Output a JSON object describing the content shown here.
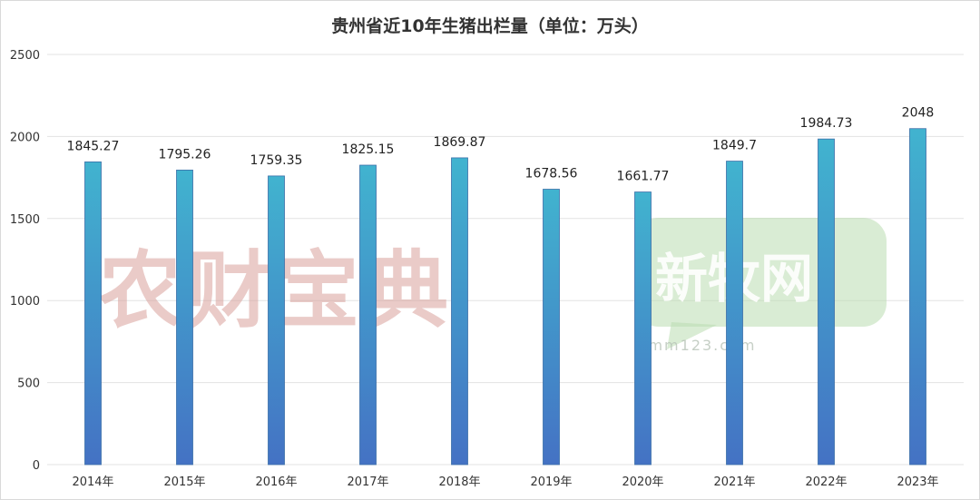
{
  "chart_data": {
    "type": "bar",
    "title": "贵州省近10年生猪出栏量（单位：万头）",
    "categories": [
      "2014年",
      "2015年",
      "2016年",
      "2017年",
      "2018年",
      "2019年",
      "2020年",
      "2021年",
      "2022年",
      "2023年"
    ],
    "values": [
      1845.27,
      1795.26,
      1759.35,
      1825.15,
      1869.87,
      1678.56,
      1661.77,
      1849.7,
      1984.73,
      2048
    ],
    "value_labels": [
      "1845.27",
      "1795.26",
      "1759.35",
      "1825.15",
      "1869.87",
      "1678.56",
      "1661.77",
      "1849.7",
      "1984.73",
      "2048"
    ],
    "yticks": [
      "0",
      "500",
      "1000",
      "1500",
      "2000",
      "2500"
    ],
    "ylim": [
      0,
      2500
    ],
    "grid": true,
    "bar_color_top": "#41b3cf",
    "bar_color_bottom": "#4472c4"
  },
  "watermarks": {
    "left": "农财宝典",
    "right": "新牧网",
    "right_url": "xmm123.com"
  }
}
